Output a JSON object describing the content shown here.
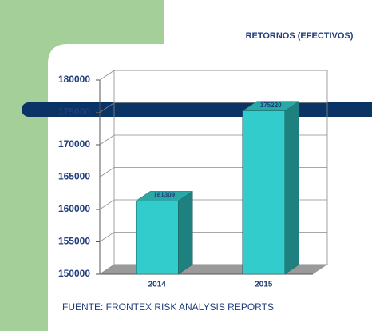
{
  "chart_data": {
    "type": "bar3d",
    "title": "RETORNOS (EFECTIVOS)",
    "categories": [
      "2014",
      "2015"
    ],
    "values": [
      161309,
      175220
    ],
    "color": "#33cccc",
    "ylim": [
      150000,
      180000
    ],
    "yticks": [
      150000,
      155000,
      160000,
      165000,
      170000,
      175000,
      180000
    ],
    "grid": true,
    "source": "FUENTE: FRONTEX RISK ANALYSIS REPORTS"
  }
}
